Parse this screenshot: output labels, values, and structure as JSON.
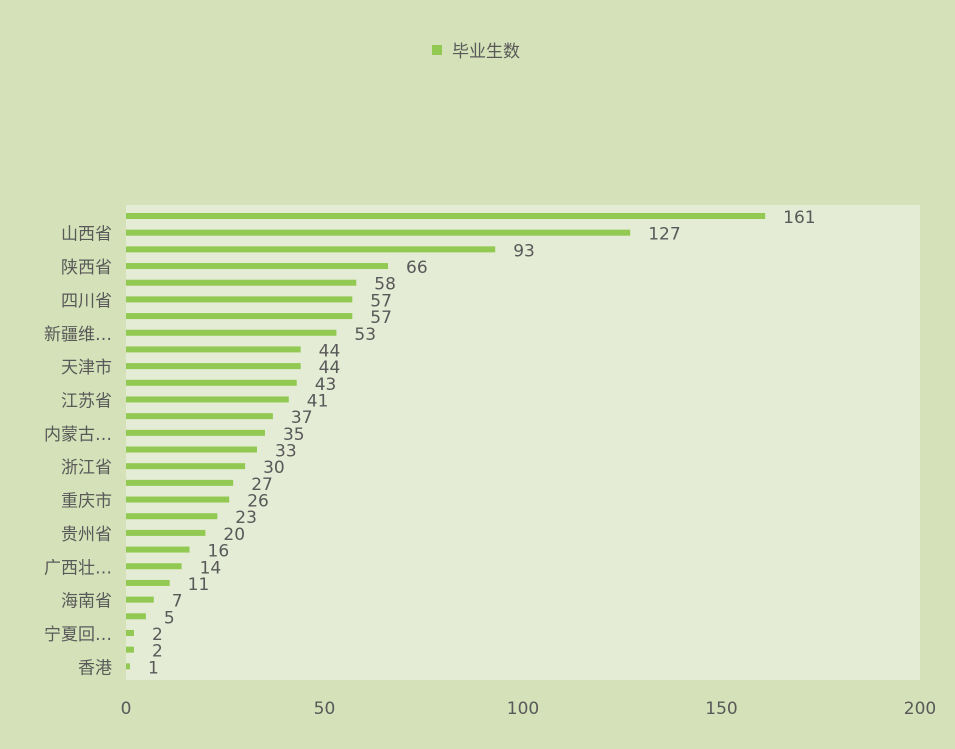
{
  "chart_data": {
    "type": "bar",
    "orientation": "horizontal",
    "legend": {
      "position": "top",
      "label": "毕业生数"
    },
    "colors": {
      "bar": "#92c952",
      "plot_bg": "#e5ecd5",
      "page_bg": "#d5e2b9",
      "text": "#595959"
    },
    "xlim": [
      0,
      200
    ],
    "x_ticks": [
      "0",
      "50",
      "100",
      "150",
      "200"
    ],
    "grid": false,
    "series": [
      {
        "name": "毕业生数",
        "values": [
          161,
          127,
          93,
          66,
          58,
          57,
          57,
          53,
          44,
          44,
          43,
          41,
          37,
          35,
          33,
          30,
          27,
          26,
          23,
          20,
          16,
          14,
          11,
          7,
          5,
          2,
          2,
          1
        ]
      }
    ],
    "categories_shown": [
      {
        "label": "山西省",
        "index": 1
      },
      {
        "label": "陕西省",
        "index": 3
      },
      {
        "label": "四川省",
        "index": 5
      },
      {
        "label": "新疆维…",
        "index": 7
      },
      {
        "label": "天津市",
        "index": 9
      },
      {
        "label": "江苏省",
        "index": 11
      },
      {
        "label": "内蒙古…",
        "index": 13
      },
      {
        "label": "浙江省",
        "index": 15
      },
      {
        "label": "重庆市",
        "index": 17
      },
      {
        "label": "贵州省",
        "index": 19
      },
      {
        "label": "广西壮…",
        "index": 21
      },
      {
        "label": "海南省",
        "index": 23
      },
      {
        "label": "宁夏回…",
        "index": 25
      },
      {
        "label": "香港",
        "index": 27
      }
    ]
  }
}
